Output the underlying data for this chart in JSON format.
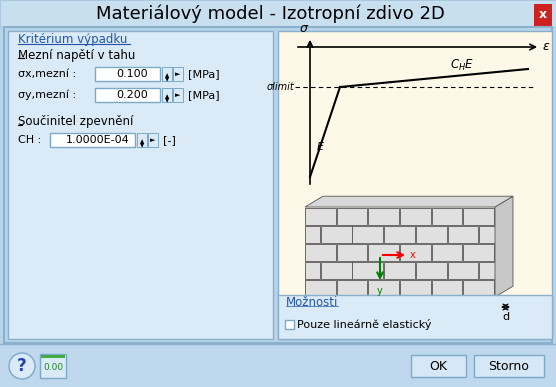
{
  "title": "Materiálový model - Izotropní zdivo 2D",
  "title_fontsize": 13,
  "bg_color": "#b8d4e8",
  "panel_bg": "#c8dff0",
  "close_btn_color": "#cc2222",
  "left_panel_bg": "#daeaf7",
  "graph_bg": "#fdf8e8",
  "section_title_color": "#2255aa",
  "text_color": "#000000",
  "field_bg": "#ffffff",
  "field_border": "#7aaac8",
  "ok_btn_bg": "#d6e8f7",
  "ok_btn_border": "#7aaac8",
  "moznosti_bg": "#daeaf7",
  "moznosti_title_color": "#2255aa",
  "bottom_bar_bg": "#c0d8ee",
  "sigma_label": "σ",
  "epsilon_label": "ε",
  "sigma_limit_label": "σlimit",
  "e_label": "E",
  "section1_title": "Kritérium výpadku",
  "section2_title": "Mezní napětí v tahu",
  "sigma_x_label": "σx,mezní :",
  "sigma_x_value": "0.100",
  "sigma_x_unit": "[MPa]",
  "sigma_y_label": "σy,mezní :",
  "sigma_y_value": "0.200",
  "sigma_y_unit": "[MPa]",
  "section3_title": "Součinitel zpevnění",
  "ch_label": "CH :",
  "ch_value": "1.0000E-04",
  "ch_unit": "[-]",
  "moznosti_title": "Možnosti",
  "checkbox_label": "Pouze lineárně elastický",
  "ok_label": "OK",
  "storno_label": "Storno",
  "d_label": "d"
}
